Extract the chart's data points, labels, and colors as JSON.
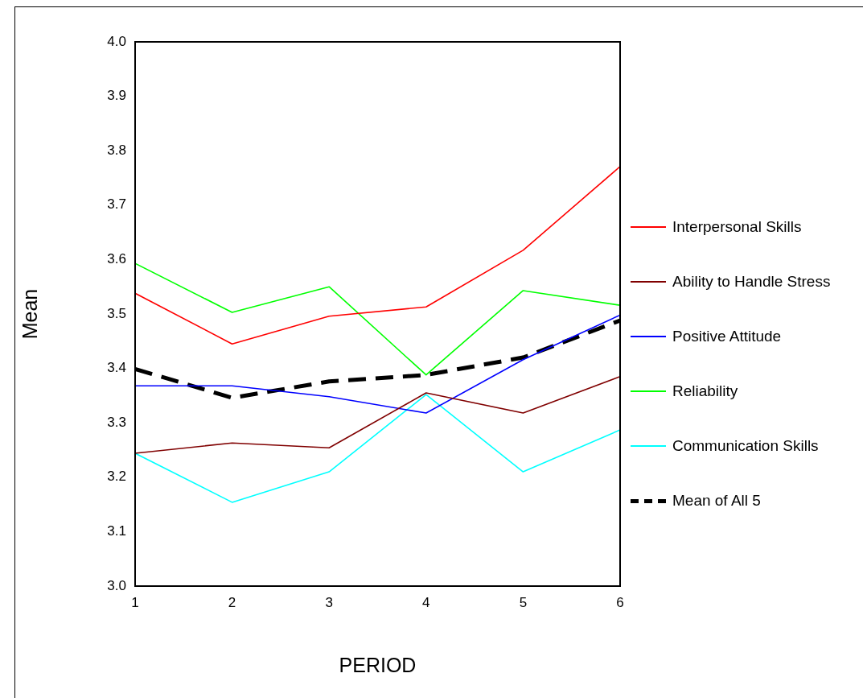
{
  "chart_data": {
    "type": "line",
    "xlabel": "PERIOD",
    "ylabel": "Mean",
    "x": [
      1,
      2,
      3,
      4,
      5,
      6
    ],
    "xlim": [
      1,
      6
    ],
    "xticks": [
      1,
      2,
      3,
      4,
      5,
      6
    ],
    "ylim": [
      3.0,
      4.0
    ],
    "yticks": [
      {
        "value": 3.0,
        "label": "3.0"
      },
      {
        "value": 3.1,
        "label": "3.1"
      },
      {
        "value": 3.2,
        "label": "3.2"
      },
      {
        "value": 3.3,
        "label": "3.3"
      },
      {
        "value": 3.4,
        "label": "3.4"
      },
      {
        "value": 3.5,
        "label": "3.5"
      },
      {
        "value": 3.6,
        "label": "3.6"
      },
      {
        "value": 3.7,
        "label": "3.7"
      },
      {
        "value": 3.8,
        "label": "3.8"
      },
      {
        "value": 3.9,
        "label": "3.9"
      },
      {
        "value": 4.0,
        "label": "4.0"
      }
    ],
    "grid": false,
    "legend": "right",
    "marker": "none",
    "series": [
      {
        "name": "Interpersonal Skills",
        "color": "#ff0000",
        "values": [
          3.538,
          3.445,
          3.496,
          3.513,
          3.617,
          3.771
        ]
      },
      {
        "name": "Ability to Handle Stress",
        "color": "#800000",
        "values": [
          3.244,
          3.263,
          3.254,
          3.355,
          3.318,
          3.385
        ]
      },
      {
        "name": "Positive Attitude",
        "color": "#0000ff",
        "values": [
          3.368,
          3.368,
          3.348,
          3.318,
          3.416,
          3.498
        ]
      },
      {
        "name": "Reliability",
        "color": "#00ff00",
        "values": [
          3.593,
          3.503,
          3.55,
          3.388,
          3.543,
          3.516
        ]
      },
      {
        "name": "Communication Skills",
        "color": "#00ffff",
        "values": [
          3.244,
          3.154,
          3.21,
          3.352,
          3.21,
          3.287
        ]
      },
      {
        "name": "Mean of All 5",
        "color": "#000000",
        "values": [
          3.399,
          3.346,
          3.376,
          3.388,
          3.42,
          3.488
        ],
        "line_style": "dashed"
      }
    ]
  }
}
